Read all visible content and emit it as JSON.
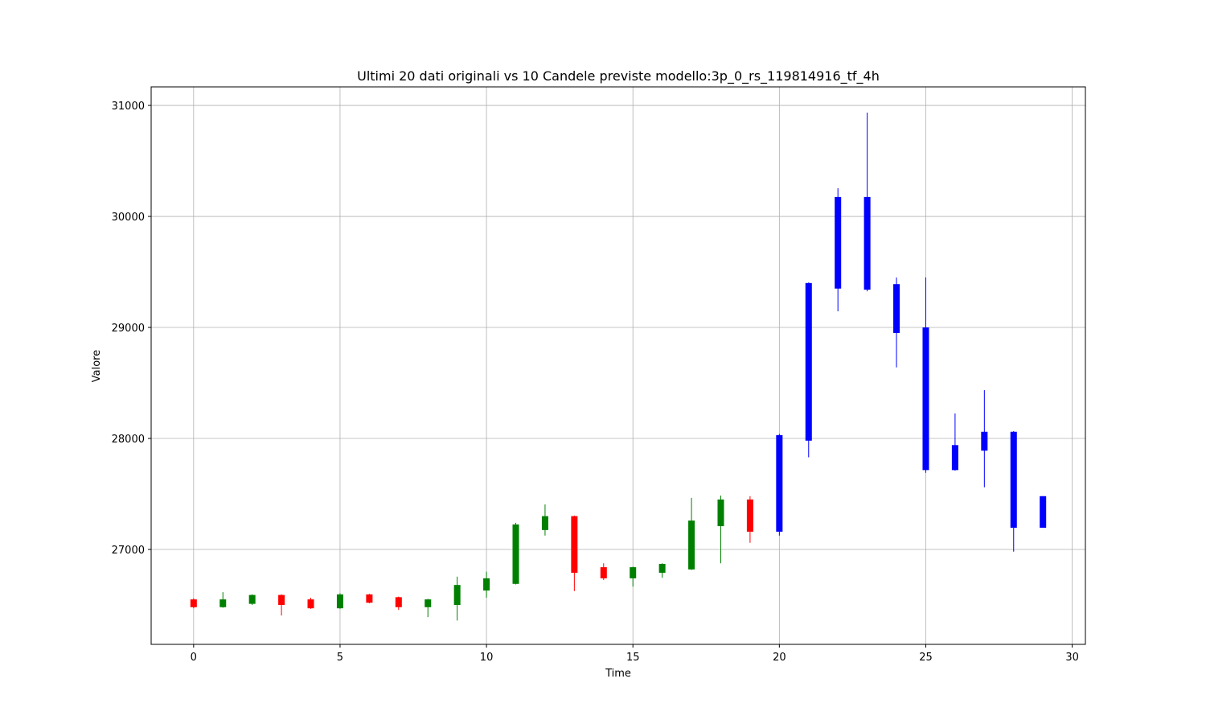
{
  "chart_data": {
    "type": "candlestick",
    "title": "Ultimi 20 dati originali vs 10 Candele previste modello:3p_0_rs_119814916_tf_4h",
    "x_label": "Time",
    "y_label": "Valore",
    "x": [
      0,
      1,
      2,
      3,
      4,
      5,
      6,
      7,
      8,
      9,
      10,
      11,
      12,
      13,
      14,
      15,
      16,
      17,
      18,
      19,
      20,
      21,
      22,
      23,
      24,
      25,
      26,
      27,
      28,
      29
    ],
    "open": [
      26550,
      26480,
      26510,
      26590,
      26550,
      26470,
      26595,
      26570,
      26480,
      26500,
      26630,
      26690,
      27175,
      27300,
      26840,
      26740,
      26790,
      26820,
      27210,
      27450,
      27160,
      27980,
      29350,
      30175,
      29390,
      29000,
      27715,
      28060,
      28060,
      27195
    ],
    "high": [
      26560,
      26615,
      26595,
      26595,
      26565,
      26605,
      26600,
      26575,
      26555,
      26755,
      26800,
      27240,
      27405,
      27305,
      26875,
      26845,
      26875,
      27465,
      27485,
      27480,
      28040,
      29405,
      30255,
      30935,
      29450,
      29450,
      28225,
      28435,
      28065,
      27480
    ],
    "low": [
      26470,
      26475,
      26500,
      26405,
      26465,
      26465,
      26515,
      26455,
      26390,
      26360,
      26565,
      26685,
      27125,
      26625,
      26725,
      26665,
      26745,
      26815,
      26875,
      27060,
      27125,
      27830,
      29145,
      29325,
      28640,
      27690,
      27710,
      27560,
      26980,
      27195
    ],
    "close": [
      26480,
      26550,
      26590,
      26500,
      26470,
      26595,
      26520,
      26480,
      26550,
      26680,
      26740,
      27225,
      27300,
      26790,
      26740,
      26840,
      26870,
      27260,
      27450,
      27160,
      28030,
      29400,
      30175,
      29340,
      28950,
      27715,
      27940,
      27890,
      27195,
      27480
    ],
    "colors": [
      "red",
      "green",
      "green",
      "red",
      "red",
      "green",
      "red",
      "red",
      "green",
      "green",
      "green",
      "green",
      "green",
      "red",
      "red",
      "green",
      "green",
      "green",
      "green",
      "red",
      "blue",
      "blue",
      "blue",
      "blue",
      "blue",
      "blue",
      "blue",
      "blue",
      "blue",
      "blue"
    ],
    "xlim": [
      -1.45,
      30.45
    ],
    "ylim": [
      26145,
      31167
    ],
    "xticks": [
      0,
      5,
      10,
      15,
      20,
      25,
      30
    ],
    "yticks": [
      27000,
      28000,
      29000,
      30000,
      31000
    ],
    "grid": true
  }
}
